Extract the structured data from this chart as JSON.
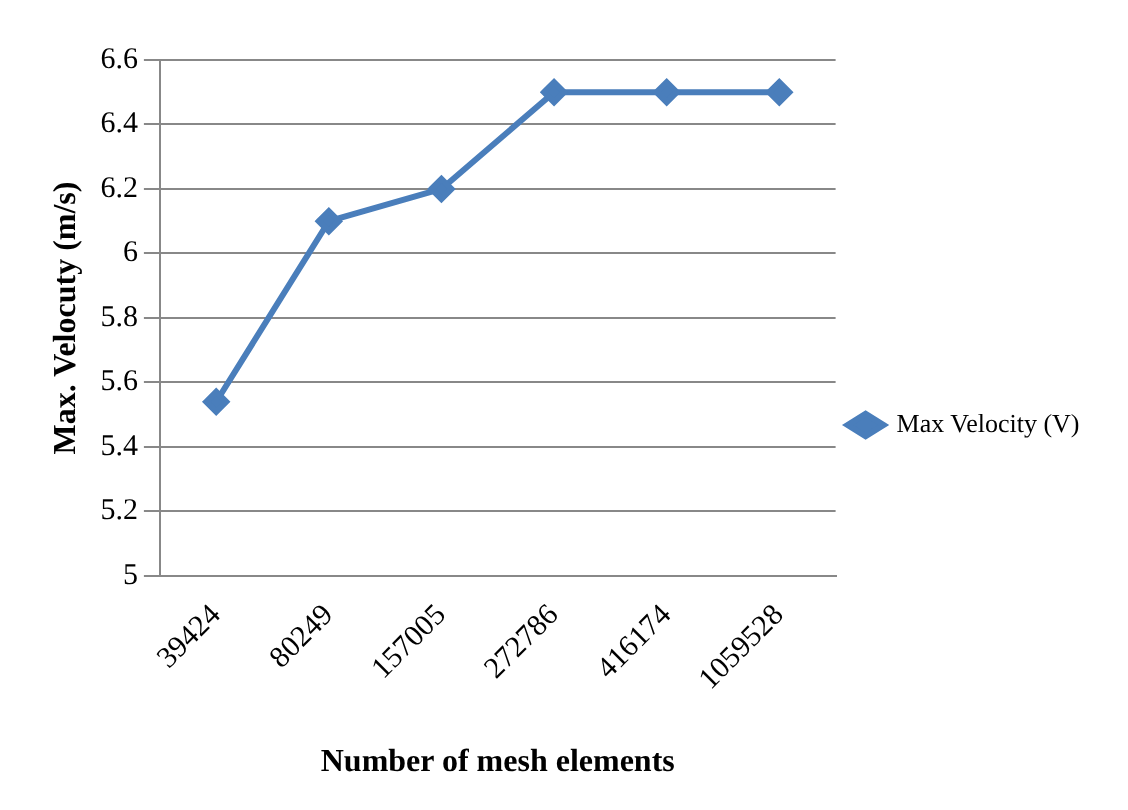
{
  "chart_data": {
    "type": "line",
    "xlabel": "Number of mesh elements",
    "ylabel": "Max. Velocuty (m/s)",
    "categories": [
      "39424",
      "80249",
      "157005",
      "272786",
      "416174",
      "1059528"
    ],
    "series": [
      {
        "name": "Max Velocity (V)",
        "color": "#4a7ebb",
        "values": [
          5.54,
          6.1,
          6.2,
          6.5,
          6.5,
          6.5
        ]
      }
    ],
    "ylim": [
      5,
      6.6
    ],
    "yticks": [
      5,
      5.2,
      5.4,
      5.6,
      5.8,
      6,
      6.2,
      6.4,
      6.6
    ],
    "grid": "y",
    "legend": "right",
    "marker": "diamond",
    "line_style": "solid"
  }
}
